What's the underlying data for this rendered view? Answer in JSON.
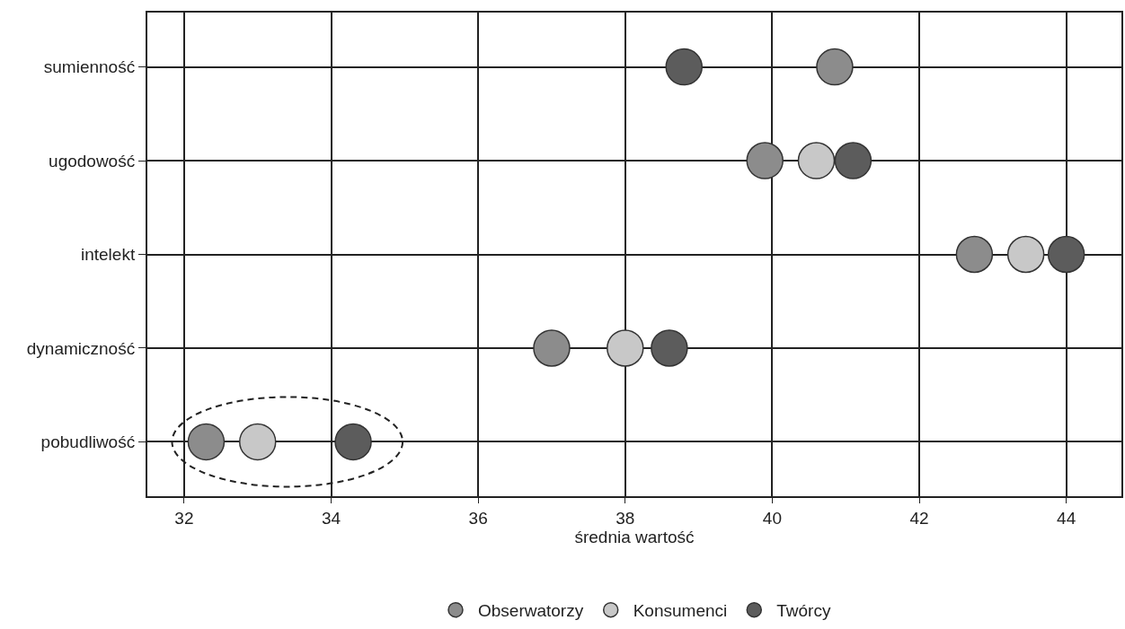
{
  "chart_data": {
    "type": "scatter",
    "xlabel": "średnia wartość",
    "categories": [
      "sumienność",
      "ugodowość",
      "intelekt",
      "dynamiczność",
      "pobudliwość"
    ],
    "orientation": "horizontal",
    "series": [
      {
        "name": "Obserwatorzy",
        "color": "#8c8c8c",
        "values": [
          40.85,
          39.9,
          42.75,
          37.0,
          32.3
        ]
      },
      {
        "name": "Konsumenci",
        "color": "#c8c8c8",
        "values": [
          null,
          40.6,
          43.45,
          38.0,
          33.0
        ]
      },
      {
        "name": "Twórcy",
        "color": "#5c5c5c",
        "values": [
          38.8,
          41.1,
          44.0,
          38.6,
          34.3
        ]
      }
    ],
    "xlim": [
      31.5,
      44.75
    ],
    "xticks": [
      32,
      34,
      36,
      38,
      40,
      42,
      44
    ],
    "grid": true,
    "legend": "bottom",
    "marker": "circle"
  }
}
